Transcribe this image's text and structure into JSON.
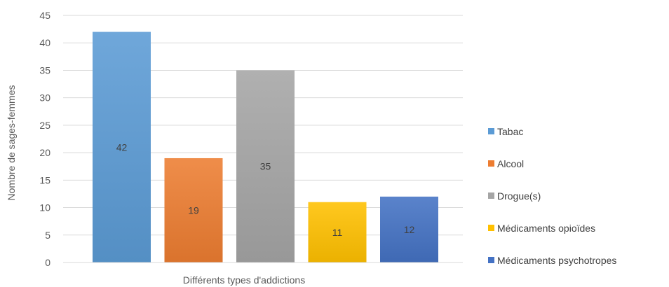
{
  "chart_data": {
    "type": "bar",
    "title": "",
    "xlabel": "Différents types d'addictions",
    "ylabel": "Nombre de sages-femmes",
    "ylim": [
      0,
      45
    ],
    "yticks": [
      "0",
      "5",
      "10",
      "15",
      "20",
      "25",
      "30",
      "35",
      "40",
      "45"
    ],
    "grid": true,
    "legend_position": "right",
    "series": [
      {
        "name": "Tabac",
        "value": 42,
        "color": "#5B9BD5"
      },
      {
        "name": "Alcool",
        "value": 19,
        "color": "#ED7D31"
      },
      {
        "name": "Drogue(s)",
        "value": 35,
        "color": "#A5A5A5"
      },
      {
        "name": "Médicaments opioïdes",
        "value": 11,
        "color": "#FFC000"
      },
      {
        "name": "Médicaments psychotropes",
        "value": 12,
        "color": "#4472C4"
      }
    ]
  }
}
